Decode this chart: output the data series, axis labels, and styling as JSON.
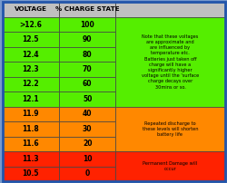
{
  "headers": [
    "VOLTAGE",
    "% CHARGE STATE"
  ],
  "rows": [
    [
      ">12.6",
      "100"
    ],
    [
      "12.5",
      "90"
    ],
    [
      "12.4",
      "80"
    ],
    [
      "12.3",
      "70"
    ],
    [
      "12.2",
      "60"
    ],
    [
      "12.1",
      "50"
    ],
    [
      "11.9",
      "40"
    ],
    [
      "11.8",
      "30"
    ],
    [
      "11.6",
      "20"
    ],
    [
      "11.3",
      "10"
    ],
    [
      "10.5",
      "0"
    ]
  ],
  "note1": "Note that these voltages\nare approximate and\nare influenced by\ntemperature etc.\nBatteries just taken off\ncharge will have a\nsignificantly higher\nvoltage until the 'surface\ncharge decays over\n30mins or so.",
  "note2": "Repeated discharge to\nthese levels will shorten\nbattery life",
  "note3": "Permanent Damage will\noccur",
  "row_colors": [
    "#55ee00",
    "#55ee00",
    "#55ee00",
    "#55ee00",
    "#55ee00",
    "#55ee00",
    "#ff8800",
    "#ff8800",
    "#ff8800",
    "#ff2200",
    "#ff2200"
  ],
  "header_bg": "#c0c0c0",
  "note_bg_green": "#55ee00",
  "note_bg_orange": "#ff8800",
  "note_bg_red": "#ff2200",
  "outer_bg": "#5577bb",
  "border_color": "#444444",
  "fig_bg": "#7799cc",
  "note1_rows": [
    0,
    1,
    2,
    3,
    4,
    5
  ],
  "note2_rows": [
    6,
    7,
    8
  ],
  "note3_rows": [
    9,
    10
  ],
  "fig_width": 2.5,
  "fig_height": 2.02,
  "dpi": 100
}
